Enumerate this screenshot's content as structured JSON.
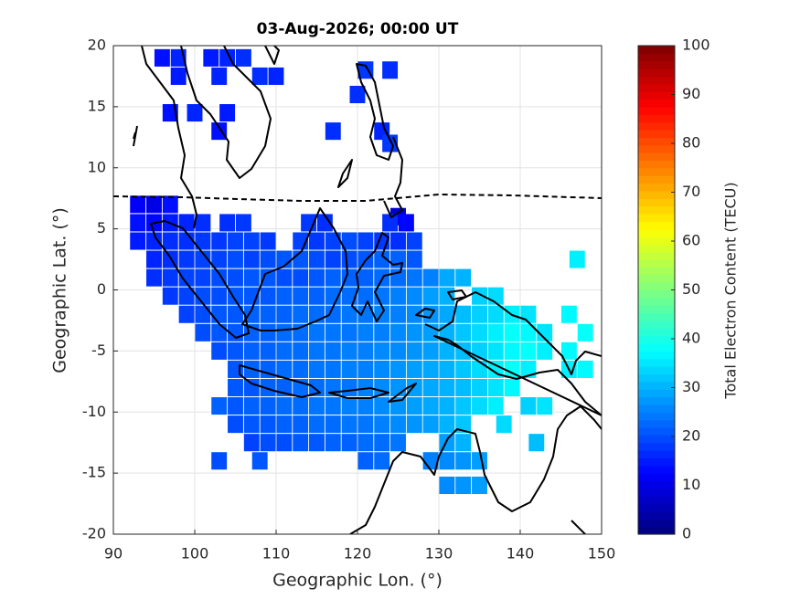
{
  "chart_data": {
    "type": "tile-map",
    "title": "03-Aug-2026; 00:00 UT",
    "x_label": "Geographic Lon. (°)",
    "y_label": "Geographic Lat. (°)",
    "colorbar_label": "Total Electron Content (TECU)",
    "colormap": "jet",
    "clim": [
      0,
      100
    ],
    "cticks": [
      0,
      10,
      20,
      30,
      40,
      50,
      60,
      70,
      80,
      90,
      100
    ],
    "xlim": [
      90,
      150
    ],
    "xticks": [
      90,
      100,
      110,
      120,
      130,
      140,
      150
    ],
    "ylim": [
      -20,
      20
    ],
    "yticks": [
      -20,
      -15,
      -10,
      -5,
      0,
      5,
      10,
      15,
      20
    ],
    "grid": true,
    "rows": [
      {
        "lat": 19,
        "lons": [
          96,
          98,
          102,
          104,
          106
        ],
        "values": [
          14,
          16,
          15,
          16,
          17
        ]
      },
      {
        "lat": 18,
        "lons": [
          121,
          124
        ],
        "values": [
          18,
          17
        ]
      },
      {
        "lat": 17.5,
        "lons": [
          98,
          103,
          108,
          110
        ],
        "values": [
          15,
          16,
          17,
          16
        ]
      },
      {
        "lat": 16,
        "lons": [
          120
        ],
        "values": [
          17
        ]
      },
      {
        "lat": 14.5,
        "lons": [
          97,
          100,
          104
        ],
        "values": [
          14,
          16,
          15
        ]
      },
      {
        "lat": 13,
        "lons": [
          103,
          117,
          123
        ],
        "values": [
          14,
          17,
          16
        ]
      },
      {
        "lat": 12,
        "lons": [
          124
        ],
        "values": [
          18
        ]
      },
      {
        "lat": 7,
        "lons": [
          93,
          95,
          97
        ],
        "values": [
          12,
          10,
          14
        ]
      },
      {
        "lat": 6,
        "lons": [
          125
        ],
        "values": [
          8
        ]
      },
      {
        "lat": 5.5,
        "lons": [
          93,
          95,
          97,
          99,
          101,
          104,
          106,
          114,
          116,
          124,
          126
        ],
        "values": [
          14,
          13,
          15,
          16,
          17,
          17,
          18,
          18,
          17,
          17,
          13
        ]
      },
      {
        "lat": 4,
        "lons": [
          93,
          95,
          97,
          99,
          101,
          103,
          105,
          107,
          109,
          113,
          115,
          117,
          119,
          121,
          123,
          125,
          127
        ],
        "values": [
          15,
          16,
          17,
          17,
          18,
          18,
          19,
          19,
          18,
          19,
          18,
          19,
          20,
          19,
          18,
          17,
          19
        ]
      },
      {
        "lat": 2.5,
        "lons": [
          95,
          97,
          99,
          101,
          103,
          105,
          107,
          109,
          111,
          113,
          115,
          117,
          119,
          121,
          123,
          125,
          127,
          147
        ],
        "values": [
          16,
          17,
          18,
          19,
          19,
          20,
          19,
          20,
          21,
          21,
          20,
          19,
          20,
          21,
          22,
          22,
          21,
          36
        ]
      },
      {
        "lat": 1,
        "lons": [
          95,
          97,
          99,
          101,
          103,
          105,
          107,
          109,
          111,
          113,
          115,
          117,
          119,
          121,
          123,
          125,
          127,
          129,
          131,
          133
        ],
        "values": [
          17,
          18,
          19,
          19,
          20,
          20,
          21,
          21,
          20,
          20,
          21,
          22,
          22,
          22,
          23,
          23,
          24,
          25,
          29,
          30
        ]
      },
      {
        "lat": -0.5,
        "lons": [
          97,
          99,
          101,
          103,
          105,
          107,
          109,
          111,
          113,
          115,
          117,
          119,
          121,
          123,
          125,
          127,
          129,
          131,
          135,
          137
        ],
        "values": [
          18,
          19,
          20,
          20,
          21,
          21,
          21,
          22,
          22,
          22,
          23,
          23,
          23,
          24,
          25,
          26,
          28,
          30,
          33,
          34
        ]
      },
      {
        "lat": -2,
        "lons": [
          99,
          101,
          103,
          105,
          107,
          109,
          111,
          113,
          115,
          117,
          119,
          121,
          123,
          125,
          127,
          129,
          131,
          133,
          135,
          137,
          139,
          141,
          146
        ],
        "values": [
          19,
          20,
          21,
          21,
          22,
          22,
          22,
          23,
          23,
          23,
          24,
          24,
          25,
          25,
          26,
          27,
          29,
          31,
          33,
          34,
          36,
          35,
          37
        ]
      },
      {
        "lat": -3.5,
        "lons": [
          101,
          103,
          105,
          107,
          109,
          111,
          113,
          115,
          117,
          119,
          121,
          123,
          125,
          127,
          129,
          131,
          133,
          135,
          137,
          139,
          141,
          143,
          148
        ],
        "values": [
          20,
          21,
          21,
          22,
          22,
          23,
          23,
          24,
          24,
          24,
          25,
          25,
          26,
          27,
          28,
          30,
          32,
          34,
          36,
          38,
          37,
          35,
          38
        ]
      },
      {
        "lat": -5,
        "lons": [
          103,
          105,
          107,
          109,
          111,
          113,
          115,
          117,
          119,
          121,
          123,
          125,
          127,
          129,
          131,
          133,
          135,
          137,
          139,
          141,
          143,
          146
        ],
        "values": [
          20,
          21,
          22,
          22,
          23,
          23,
          24,
          24,
          25,
          25,
          26,
          26,
          27,
          28,
          30,
          31,
          33,
          35,
          37,
          38,
          36,
          37
        ]
      },
      {
        "lat": -6.5,
        "lons": [
          105,
          107,
          109,
          111,
          113,
          115,
          117,
          119,
          121,
          123,
          125,
          127,
          129,
          131,
          133,
          135,
          137,
          139,
          141,
          146,
          148
        ],
        "values": [
          21,
          22,
          22,
          23,
          23,
          24,
          24,
          25,
          25,
          26,
          27,
          28,
          29,
          30,
          32,
          34,
          36,
          38,
          36,
          36,
          37
        ]
      },
      {
        "lat": -8,
        "lons": [
          105,
          107,
          109,
          111,
          113,
          115,
          117,
          119,
          121,
          123,
          125,
          127,
          129,
          131,
          133,
          135,
          137,
          139
        ],
        "values": [
          21,
          21,
          22,
          22,
          23,
          23,
          24,
          24,
          25,
          26,
          27,
          28,
          29,
          30,
          31,
          33,
          35,
          37
        ]
      },
      {
        "lat": -9.5,
        "lons": [
          103,
          105,
          107,
          109,
          111,
          113,
          115,
          117,
          119,
          121,
          123,
          125,
          127,
          129,
          131,
          133,
          135,
          137,
          141,
          143
        ],
        "values": [
          22,
          21,
          22,
          22,
          23,
          23,
          24,
          24,
          25,
          25,
          26,
          27,
          28,
          29,
          30,
          32,
          34,
          36,
          33,
          35
        ]
      },
      {
        "lat": -11,
        "lons": [
          105,
          107,
          109,
          111,
          113,
          115,
          117,
          119,
          121,
          123,
          125,
          127,
          129,
          131,
          133,
          138
        ],
        "values": [
          20,
          21,
          21,
          22,
          22,
          23,
          23,
          24,
          24,
          25,
          26,
          27,
          28,
          30,
          32,
          34
        ]
      },
      {
        "lat": -12.5,
        "lons": [
          107,
          109,
          111,
          113,
          115,
          117,
          119,
          121,
          123,
          125,
          131,
          133,
          142
        ],
        "values": [
          19,
          20,
          20,
          21,
          21,
          22,
          22,
          23,
          23,
          24,
          28,
          30,
          31
        ]
      },
      {
        "lat": -14,
        "lons": [
          103,
          108,
          121,
          123,
          129,
          131,
          133,
          135
        ],
        "values": [
          20,
          21,
          22,
          23,
          25,
          26,
          27,
          28
        ]
      },
      {
        "lat": -16,
        "lons": [
          131,
          133,
          135
        ],
        "values": [
          26,
          27,
          28
        ]
      }
    ]
  }
}
